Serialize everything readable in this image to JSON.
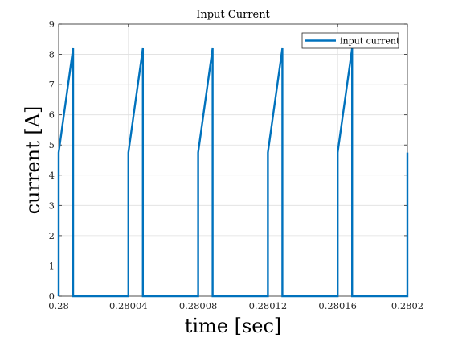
{
  "chart_data": {
    "type": "line",
    "title": "Input Current",
    "xlabel": "time [sec]",
    "ylabel": "current [A]",
    "xlim": [
      0.28,
      0.2802
    ],
    "ylim": [
      0,
      9
    ],
    "xticks": [
      0.28,
      0.28004,
      0.28008,
      0.28012,
      0.28016,
      0.2802
    ],
    "xtick_labels": [
      "0.28",
      "0.28004",
      "0.28008",
      "0.28012",
      "0.28016",
      "0.2802"
    ],
    "yticks": [
      0,
      1,
      2,
      3,
      4,
      5,
      6,
      7,
      8,
      9
    ],
    "ytick_labels": [
      "0",
      "1",
      "2",
      "3",
      "4",
      "5",
      "6",
      "7",
      "8",
      "9"
    ],
    "grid": true,
    "legend_position": "top-right",
    "series": [
      {
        "name": "input current",
        "color": "#0072BD",
        "x": [
          0.28,
          0.28,
          0.2800083,
          0.2800083,
          0.2800083,
          0.28004,
          0.28004,
          0.2800483,
          0.2800483,
          0.2800483,
          0.28008,
          0.28008,
          0.2800883,
          0.2800883,
          0.2800883,
          0.28012,
          0.28012,
          0.2801283,
          0.2801283,
          0.2801283,
          0.28016,
          0.28016,
          0.2801683,
          0.2801683,
          0.2801683,
          0.2802,
          0.2802
        ],
        "y": [
          0,
          4.75,
          8.2,
          8.2,
          0,
          0,
          4.75,
          8.2,
          8.2,
          0,
          0,
          4.75,
          8.2,
          8.2,
          0,
          0,
          4.75,
          8.2,
          8.2,
          0,
          0,
          4.75,
          8.2,
          8.2,
          0,
          0,
          4.75
        ]
      }
    ]
  }
}
